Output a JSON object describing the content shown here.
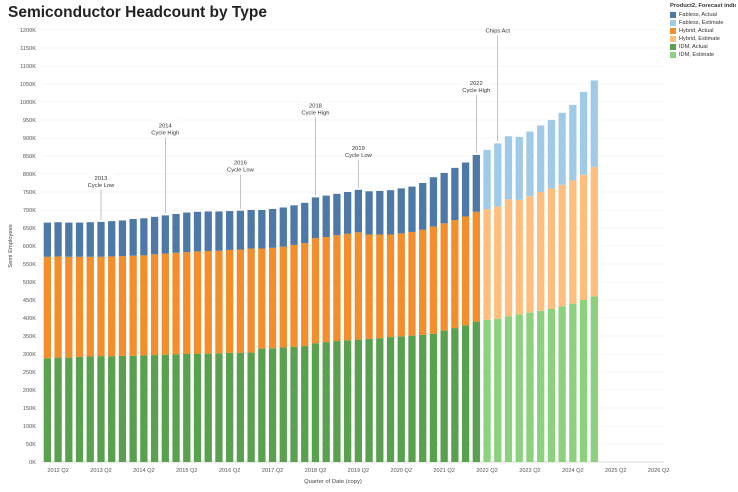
{
  "title": "Semiconductor Headcount by Type",
  "legend": {
    "title": "Product2, Forecast indica...",
    "items": [
      {
        "label": "Fabless, Actual",
        "color": "#4e79a7"
      },
      {
        "label": "Fabless, Estimate",
        "color": "#a0cbe8"
      },
      {
        "label": "Hybrid, Actual",
        "color": "#f28e2b"
      },
      {
        "label": "Hybrid, Estimate",
        "color": "#ffbe7d"
      },
      {
        "label": "IDM, Actual",
        "color": "#59a14f"
      },
      {
        "label": "IDM, Estimate",
        "color": "#8cd17d"
      }
    ]
  },
  "chart_data": {
    "type": "bar",
    "stacked": true,
    "xlabel": "Quarter of Date (copy)",
    "ylabel": "Semi Employees",
    "ylim": [
      0,
      1200000
    ],
    "y_ticks": [
      "0K",
      "50K",
      "100K",
      "150K",
      "200K",
      "250K",
      "300K",
      "350K",
      "400K",
      "450K",
      "500K",
      "550K",
      "600K",
      "650K",
      "700K",
      "750K",
      "800K",
      "850K",
      "900K",
      "950K",
      "1000K",
      "1050K",
      "1100K",
      "1150K",
      "1200K"
    ],
    "x_tick_labels": [
      "2012 Q2",
      "2013 Q2",
      "2014 Q2",
      "2015 Q2",
      "2016 Q2",
      "2017 Q2",
      "2018 Q2",
      "2019 Q2",
      "2020 Q2",
      "2021 Q2",
      "2022 Q2",
      "2023 Q2",
      "2024 Q2",
      "2025 Q2",
      "2026 Q2"
    ],
    "categories": [
      "2012 Q1",
      "2012 Q2",
      "2012 Q3",
      "2012 Q4",
      "2013 Q1",
      "2013 Q2",
      "2013 Q3",
      "2013 Q4",
      "2014 Q1",
      "2014 Q2",
      "2014 Q3",
      "2014 Q4",
      "2015 Q1",
      "2015 Q2",
      "2015 Q3",
      "2015 Q4",
      "2016 Q1",
      "2016 Q2",
      "2016 Q3",
      "2016 Q4",
      "2017 Q1",
      "2017 Q2",
      "2017 Q3",
      "2017 Q4",
      "2018 Q1",
      "2018 Q2",
      "2018 Q3",
      "2018 Q4",
      "2019 Q1",
      "2019 Q2",
      "2019 Q3",
      "2019 Q4",
      "2020 Q1",
      "2020 Q2",
      "2020 Q3",
      "2020 Q4",
      "2021 Q1",
      "2021 Q2",
      "2021 Q3",
      "2021 Q4",
      "2022 Q1",
      "2022 Q2",
      "2022 Q3",
      "2022 Q4",
      "2023 Q1",
      "2023 Q2",
      "2023 Q3",
      "2023 Q4",
      "2024 Q1",
      "2024 Q2",
      "2024 Q3",
      "2024 Q4",
      "2025 Q1",
      "2025 Q2",
      "2025 Q3",
      "2025 Q4",
      "2026 Q1",
      "2026 Q2"
    ],
    "actual_count": 41,
    "series": [
      {
        "name": "IDM",
        "color_actual": "#59a14f",
        "color_estimate": "#8cd17d",
        "values": [
          288000,
          290000,
          290000,
          292000,
          293000,
          294000,
          294000,
          295000,
          295000,
          296000,
          297000,
          298000,
          299000,
          300000,
          301000,
          301000,
          302000,
          303000,
          303000,
          304000,
          315000,
          316000,
          318000,
          320000,
          322000,
          330000,
          333000,
          336000,
          338000,
          340000,
          342000,
          344000,
          347000,
          349000,
          351000,
          353000,
          356000,
          365000,
          372000,
          380000,
          390000,
          395000,
          398000,
          405000,
          410000,
          415000,
          420000,
          425000,
          432000,
          440000,
          450000,
          460000,
          null,
          null,
          null,
          null,
          null,
          null
        ]
      },
      {
        "name": "Hybrid",
        "color_actual": "#f28e2b",
        "color_estimate": "#ffbe7d",
        "values": [
          282000,
          281000,
          280000,
          278000,
          277000,
          276000,
          277000,
          277000,
          278000,
          278000,
          280000,
          281000,
          282000,
          283000,
          284000,
          285000,
          285000,
          286000,
          287000,
          289000,
          278000,
          279000,
          280000,
          283000,
          286000,
          292000,
          292000,
          294000,
          296000,
          298000,
          290000,
          288000,
          285000,
          286000,
          288000,
          292000,
          298000,
          298000,
          300000,
          302000,
          305000,
          307000,
          312000,
          325000,
          318000,
          323000,
          330000,
          335000,
          338000,
          342000,
          348000,
          360000,
          null,
          null,
          null,
          null,
          null,
          null
        ]
      },
      {
        "name": "Fabless",
        "color_actual": "#4e79a7",
        "color_estimate": "#a0cbe8",
        "values": [
          95000,
          95000,
          95000,
          95000,
          96000,
          97000,
          98000,
          99000,
          102000,
          103000,
          104000,
          106000,
          108000,
          110000,
          110000,
          110000,
          109000,
          108000,
          108000,
          107000,
          107000,
          108000,
          109000,
          110000,
          112000,
          113000,
          115000,
          115000,
          116000,
          118000,
          120000,
          121000,
          123000,
          125000,
          126000,
          130000,
          137000,
          140000,
          145000,
          150000,
          158000,
          165000,
          175000,
          175000,
          175000,
          180000,
          185000,
          190000,
          200000,
          210000,
          230000,
          240000,
          null,
          null,
          null,
          null,
          null,
          null
        ]
      }
    ],
    "annotations": [
      {
        "category": "2013 Q2",
        "lines": [
          "2013",
          "Cycle Low"
        ]
      },
      {
        "category": "2014 Q4",
        "lines": [
          "2014",
          "Cycle High"
        ]
      },
      {
        "category": "2016 Q3",
        "lines": [
          "2016",
          "Cycle Low"
        ]
      },
      {
        "category": "2018 Q2",
        "lines": [
          "2018",
          "Cycle High"
        ]
      },
      {
        "category": "2019 Q2",
        "lines": [
          "2019",
          "Cycle Low"
        ]
      },
      {
        "category": "2022 Q1",
        "lines": [
          "2022",
          "Cycle High"
        ]
      },
      {
        "category": "2022 Q3",
        "lines": [
          "Chips Act"
        ]
      }
    ],
    "grid": true,
    "legend_position": "top-right"
  }
}
